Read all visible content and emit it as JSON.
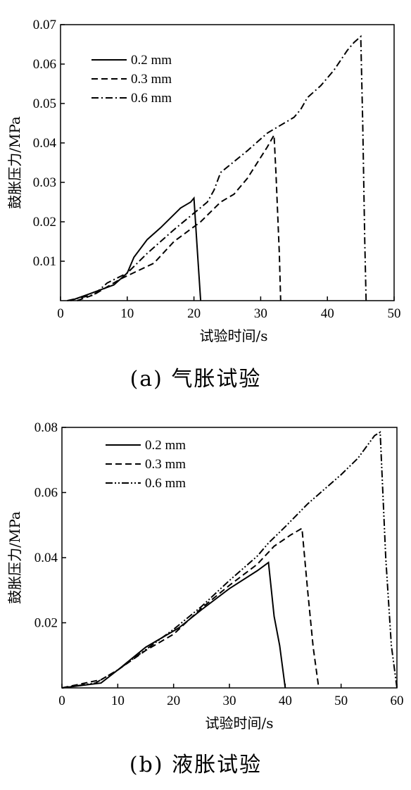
{
  "chart_data": [
    {
      "type": "line",
      "title": "",
      "caption": "(a) 气胀试验",
      "xlabel": "试验时间/s",
      "ylabel": "鼓胀压力/MPa",
      "xlim": [
        0,
        50
      ],
      "ylim": [
        0,
        0.07
      ],
      "xticks": [
        "0",
        "10",
        "20",
        "30",
        "40",
        "50"
      ],
      "yticks": [
        "0.01",
        "0.02",
        "0.03",
        "0.04",
        "0.05",
        "0.06",
        "0.07"
      ],
      "grid": false,
      "legend_position": "top-left",
      "series": [
        {
          "name": "0.2 mm",
          "dash": "solid",
          "points": [
            [
              1.5,
              0
            ],
            [
              4,
              0.0015
            ],
            [
              8,
              0.004
            ],
            [
              10,
              0.007
            ],
            [
              11,
              0.011
            ],
            [
              13,
              0.0155
            ],
            [
              15,
              0.0185
            ],
            [
              18,
              0.0235
            ],
            [
              19,
              0.0245
            ],
            [
              19.5,
              0.025
            ],
            [
              20,
              0.026
            ],
            [
              20.5,
              0.013
            ],
            [
              21,
              0
            ]
          ]
        },
        {
          "name": "0.3 mm",
          "dash": "dashed",
          "points": [
            [
              2.5,
              0
            ],
            [
              5,
              0.0015
            ],
            [
              9,
              0.0055
            ],
            [
              14,
              0.0095
            ],
            [
              17,
              0.015
            ],
            [
              21,
              0.02
            ],
            [
              24,
              0.025
            ],
            [
              26,
              0.027
            ],
            [
              28,
              0.031
            ],
            [
              31,
              0.039
            ],
            [
              32,
              0.042
            ],
            [
              32.3,
              0.032
            ],
            [
              32.8,
              0.012
            ],
            [
              33,
              0
            ]
          ]
        },
        {
          "name": "0.6 mm",
          "dash": "dashdot",
          "points": [
            [
              1,
              0
            ],
            [
              5,
              0.0015
            ],
            [
              7,
              0.0045
            ],
            [
              10,
              0.007
            ],
            [
              13,
              0.012
            ],
            [
              17,
              0.018
            ],
            [
              22,
              0.025
            ],
            [
              23,
              0.028
            ],
            [
              24,
              0.0325
            ],
            [
              28,
              0.038
            ],
            [
              31,
              0.0425
            ],
            [
              33,
              0.0445
            ],
            [
              35,
              0.0465
            ],
            [
              36,
              0.0485
            ],
            [
              37,
              0.0515
            ],
            [
              39,
              0.0545
            ],
            [
              41,
              0.0585
            ],
            [
              43,
              0.0635
            ],
            [
              44,
              0.0655
            ],
            [
              45,
              0.067
            ],
            [
              45.3,
              0.045
            ],
            [
              45.6,
              0.015
            ],
            [
              45.8,
              0
            ]
          ]
        }
      ]
    },
    {
      "type": "line",
      "title": "",
      "caption": "(b) 液胀试验",
      "xlabel": "试验时间/s",
      "ylabel": "鼓胀压力/MPa",
      "xlim": [
        0,
        60
      ],
      "ylim": [
        0,
        0.08
      ],
      "xticks": [
        "0",
        "10",
        "20",
        "30",
        "40",
        "50",
        "60"
      ],
      "yticks": [
        "0.02",
        "0.04",
        "0.06",
        "0.08"
      ],
      "grid": false,
      "legend_position": "top-left",
      "series": [
        {
          "name": "0.2 mm",
          "dash": "solid",
          "points": [
            [
              0,
              0
            ],
            [
              7,
              0.0015
            ],
            [
              10,
              0.0055
            ],
            [
              15,
              0.0125
            ],
            [
              19,
              0.0165
            ],
            [
              21,
              0.0185
            ],
            [
              25,
              0.024
            ],
            [
              30,
              0.0305
            ],
            [
              35,
              0.036
            ],
            [
              37,
              0.0385
            ],
            [
              38,
              0.022
            ],
            [
              39,
              0.013
            ],
            [
              40,
              0
            ]
          ]
        },
        {
          "name": "0.3 mm",
          "dash": "dashed",
          "points": [
            [
              0,
              0
            ],
            [
              7,
              0.0025
            ],
            [
              10,
              0.0055
            ],
            [
              15,
              0.0115
            ],
            [
              20,
              0.0165
            ],
            [
              25,
              0.0245
            ],
            [
              30,
              0.0315
            ],
            [
              35,
              0.038
            ],
            [
              38,
              0.0435
            ],
            [
              41,
              0.047
            ],
            [
              43,
              0.049
            ],
            [
              44,
              0.03
            ],
            [
              45,
              0.0125
            ],
            [
              46,
              0
            ]
          ]
        },
        {
          "name": "0.6 mm",
          "dash": "dashdotdot",
          "points": [
            [
              0,
              0
            ],
            [
              6,
              0.0015
            ],
            [
              10,
              0.0055
            ],
            [
              14,
              0.0105
            ],
            [
              20,
              0.018
            ],
            [
              25,
              0.025
            ],
            [
              30,
              0.033
            ],
            [
              35,
              0.0405
            ],
            [
              37,
              0.0445
            ],
            [
              40,
              0.0495
            ],
            [
              44,
              0.0565
            ],
            [
              47,
              0.061
            ],
            [
              50,
              0.0655
            ],
            [
              53,
              0.0705
            ],
            [
              56,
              0.0775
            ],
            [
              57,
              0.0785
            ],
            [
              58,
              0.04
            ],
            [
              59,
              0.013
            ],
            [
              60,
              0
            ]
          ]
        }
      ]
    }
  ]
}
